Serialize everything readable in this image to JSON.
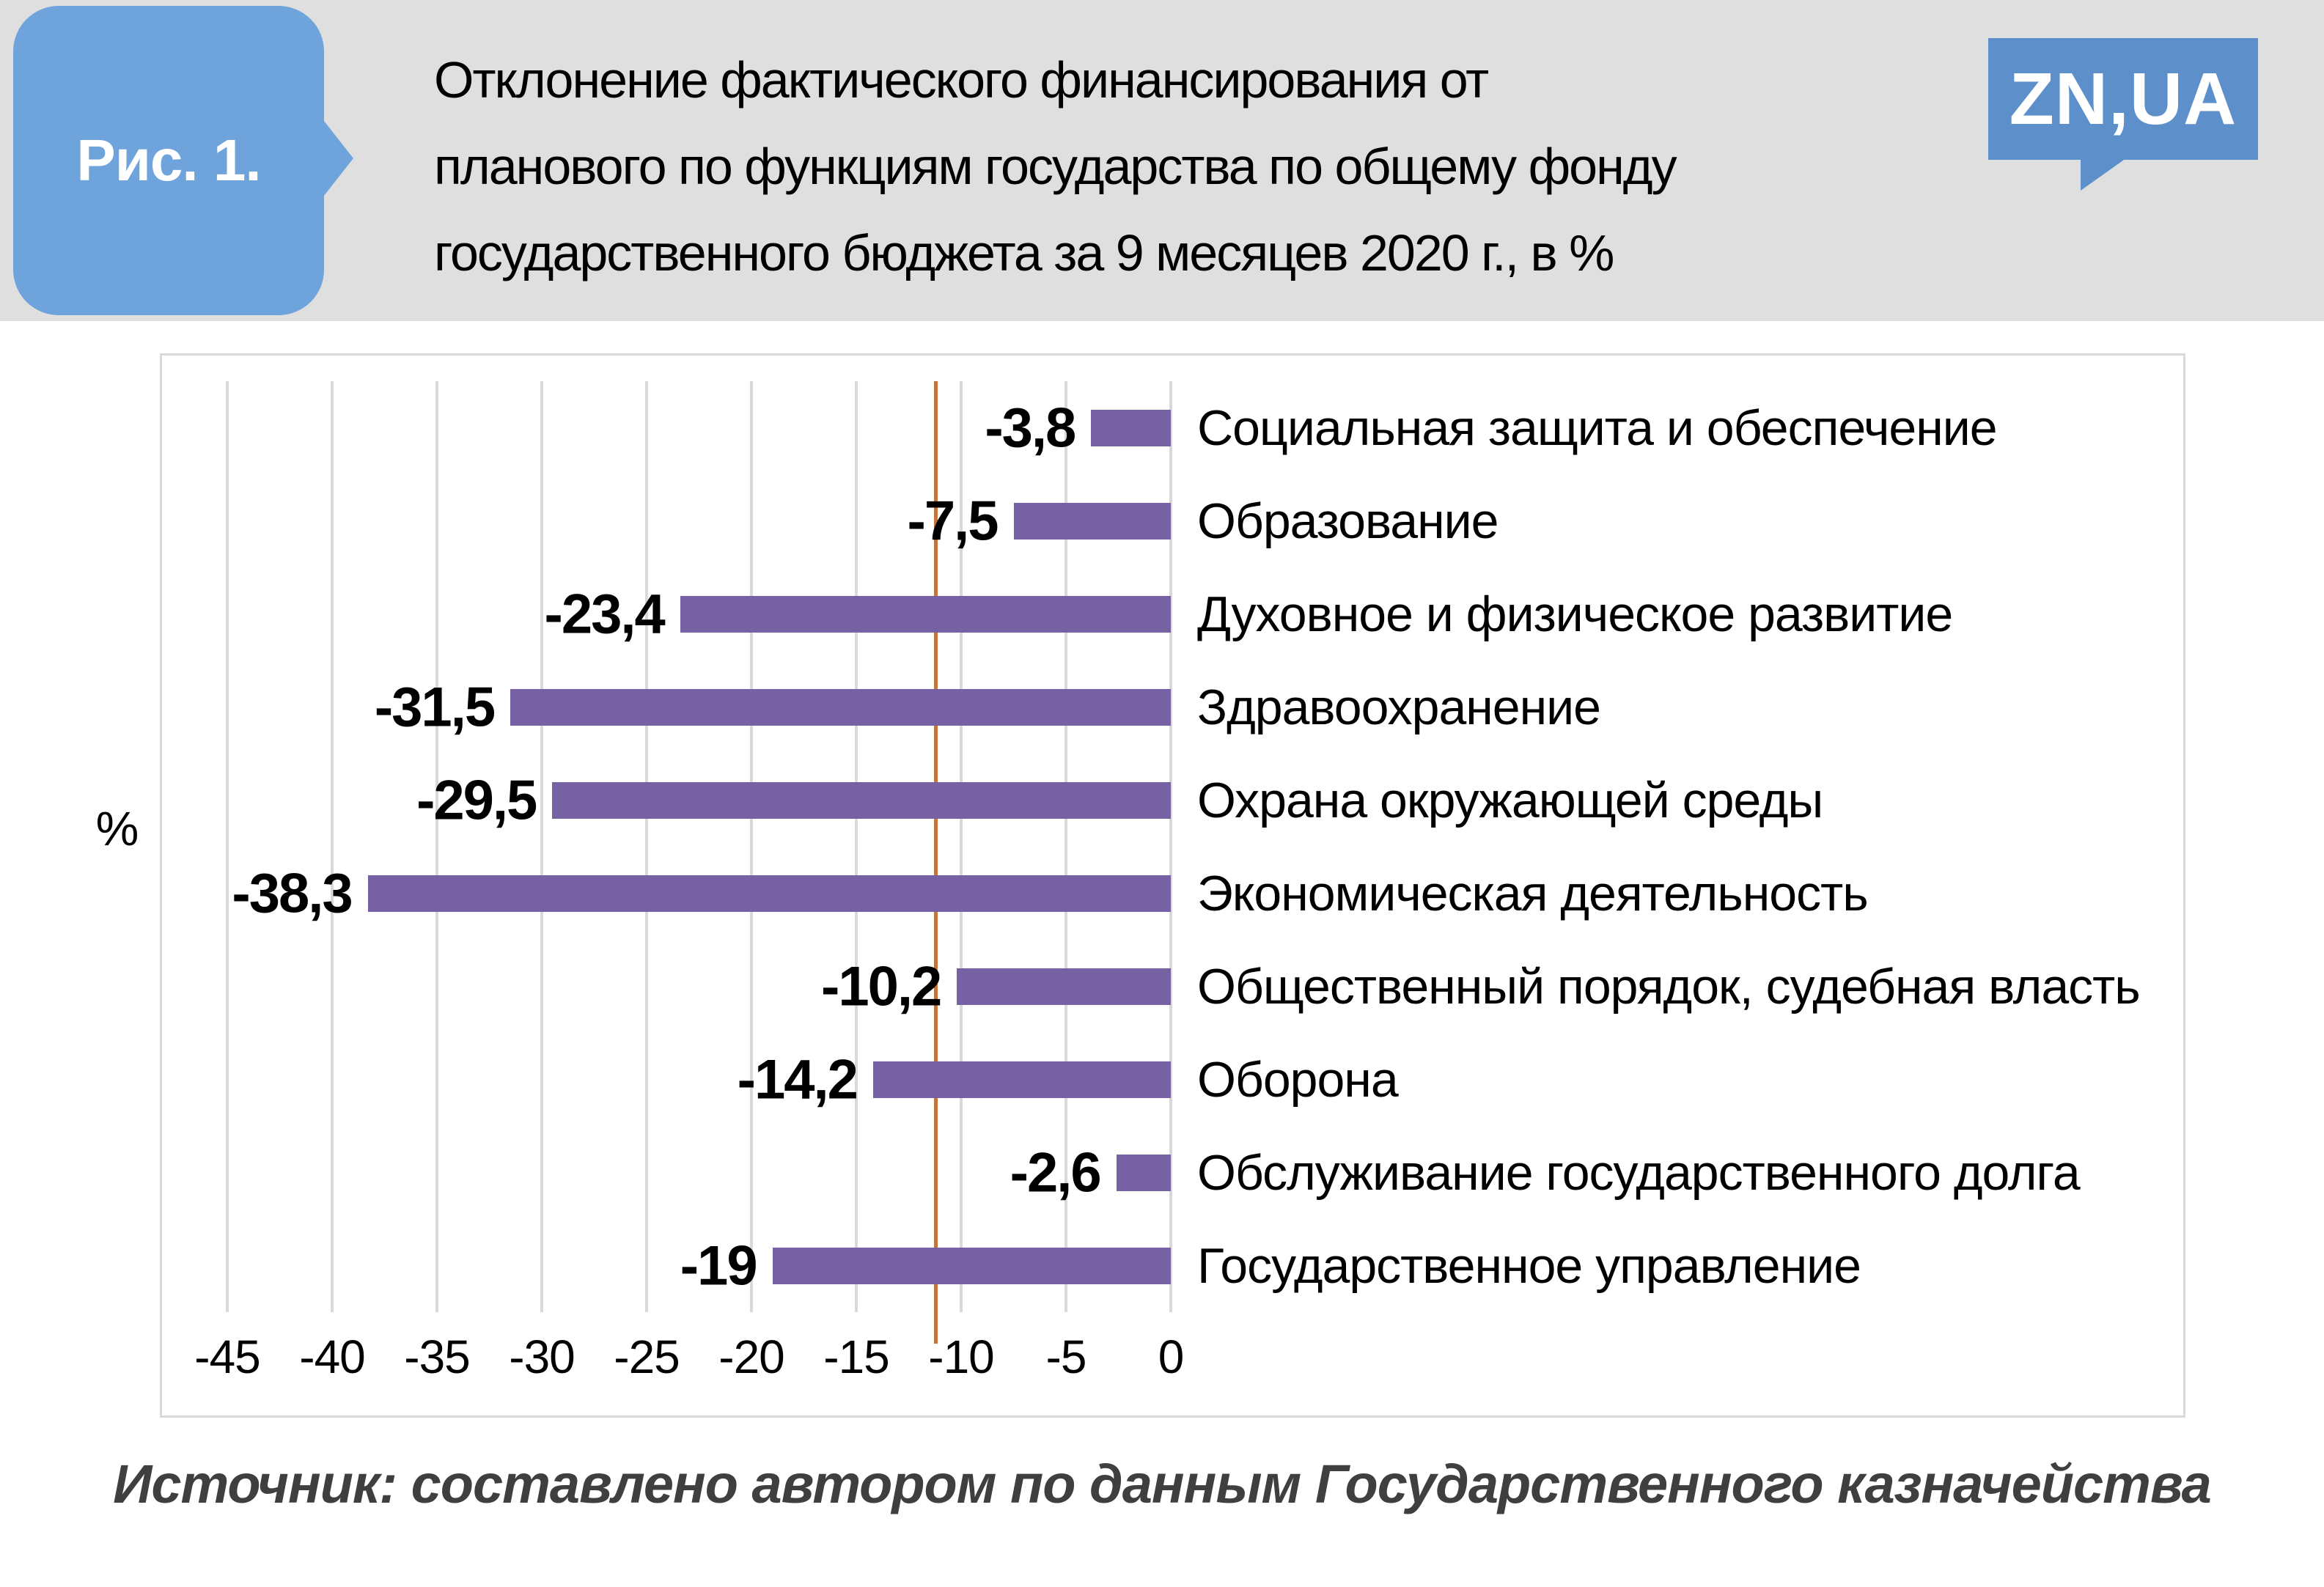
{
  "figure_label": "Рис. 1.",
  "title": "Отклонение фактического финансирования от планового по функциям государства по общему фонду государственного бюджета за 9 месяцев 2020 г., в %",
  "title_lines": [
    "Отклонение фактического финансирования от",
    "планового по функциям государства по общему фонду",
    "государственного бюджета за 9 месяцев 2020 г., в %"
  ],
  "logo": {
    "text": "ZN,UA"
  },
  "axis_unit": "%",
  "source": {
    "text": "Источник: составлено автором по данным Государственного казначейства"
  },
  "colors": {
    "header_band": "#DFDFDF",
    "badge_blue": "#6FA3DB",
    "logo_blue": "#5D90CA",
    "bar_purple": "#7661A5",
    "reference_orange": "#C4753E",
    "gridline_gray": "#D9D9D9",
    "source_text": "#3F3F3F"
  },
  "chart_data": {
    "type": "bar",
    "orientation": "horizontal",
    "title": "Отклонение фактического финансирования от планового по функциям государства по общему фонду государственного бюджета за 9 месяцев 2020 г., в %",
    "categories": [
      "Социальная защита и обеспечение",
      "Образование",
      "Духовное и физическое развитие",
      "Здравоохранение",
      "Охрана окружающей среды",
      "Экономическая деятельность",
      "Общественный порядок, судебная власть",
      "Оборона",
      "Обслуживание государственного долга",
      "Государственное управление"
    ],
    "values": [
      -3.8,
      -7.5,
      -23.4,
      -31.5,
      -29.5,
      -38.3,
      -10.2,
      -14.2,
      -2.6,
      -19
    ],
    "value_labels": [
      "-3,8",
      "-7,5",
      "-23,4",
      "-31,5",
      "-29,5",
      "-38,3",
      "-10,2",
      "-14,2",
      "-2,6",
      "-19"
    ],
    "xlabel": "%",
    "ylabel": "",
    "xlim": [
      -45,
      0
    ],
    "tick_values": [
      -45,
      -40,
      -35,
      -30,
      -25,
      -20,
      -15,
      -10,
      -5,
      0
    ],
    "tick_labels": [
      "-45",
      "-40",
      "-35",
      "-30",
      "-25",
      "-20",
      "-15",
      "-10",
      "-5",
      "0"
    ],
    "grid": true,
    "legend": false,
    "reference_line": {
      "value": -11.2,
      "color": "#C4753E",
      "note": "vertical orange average line"
    }
  }
}
